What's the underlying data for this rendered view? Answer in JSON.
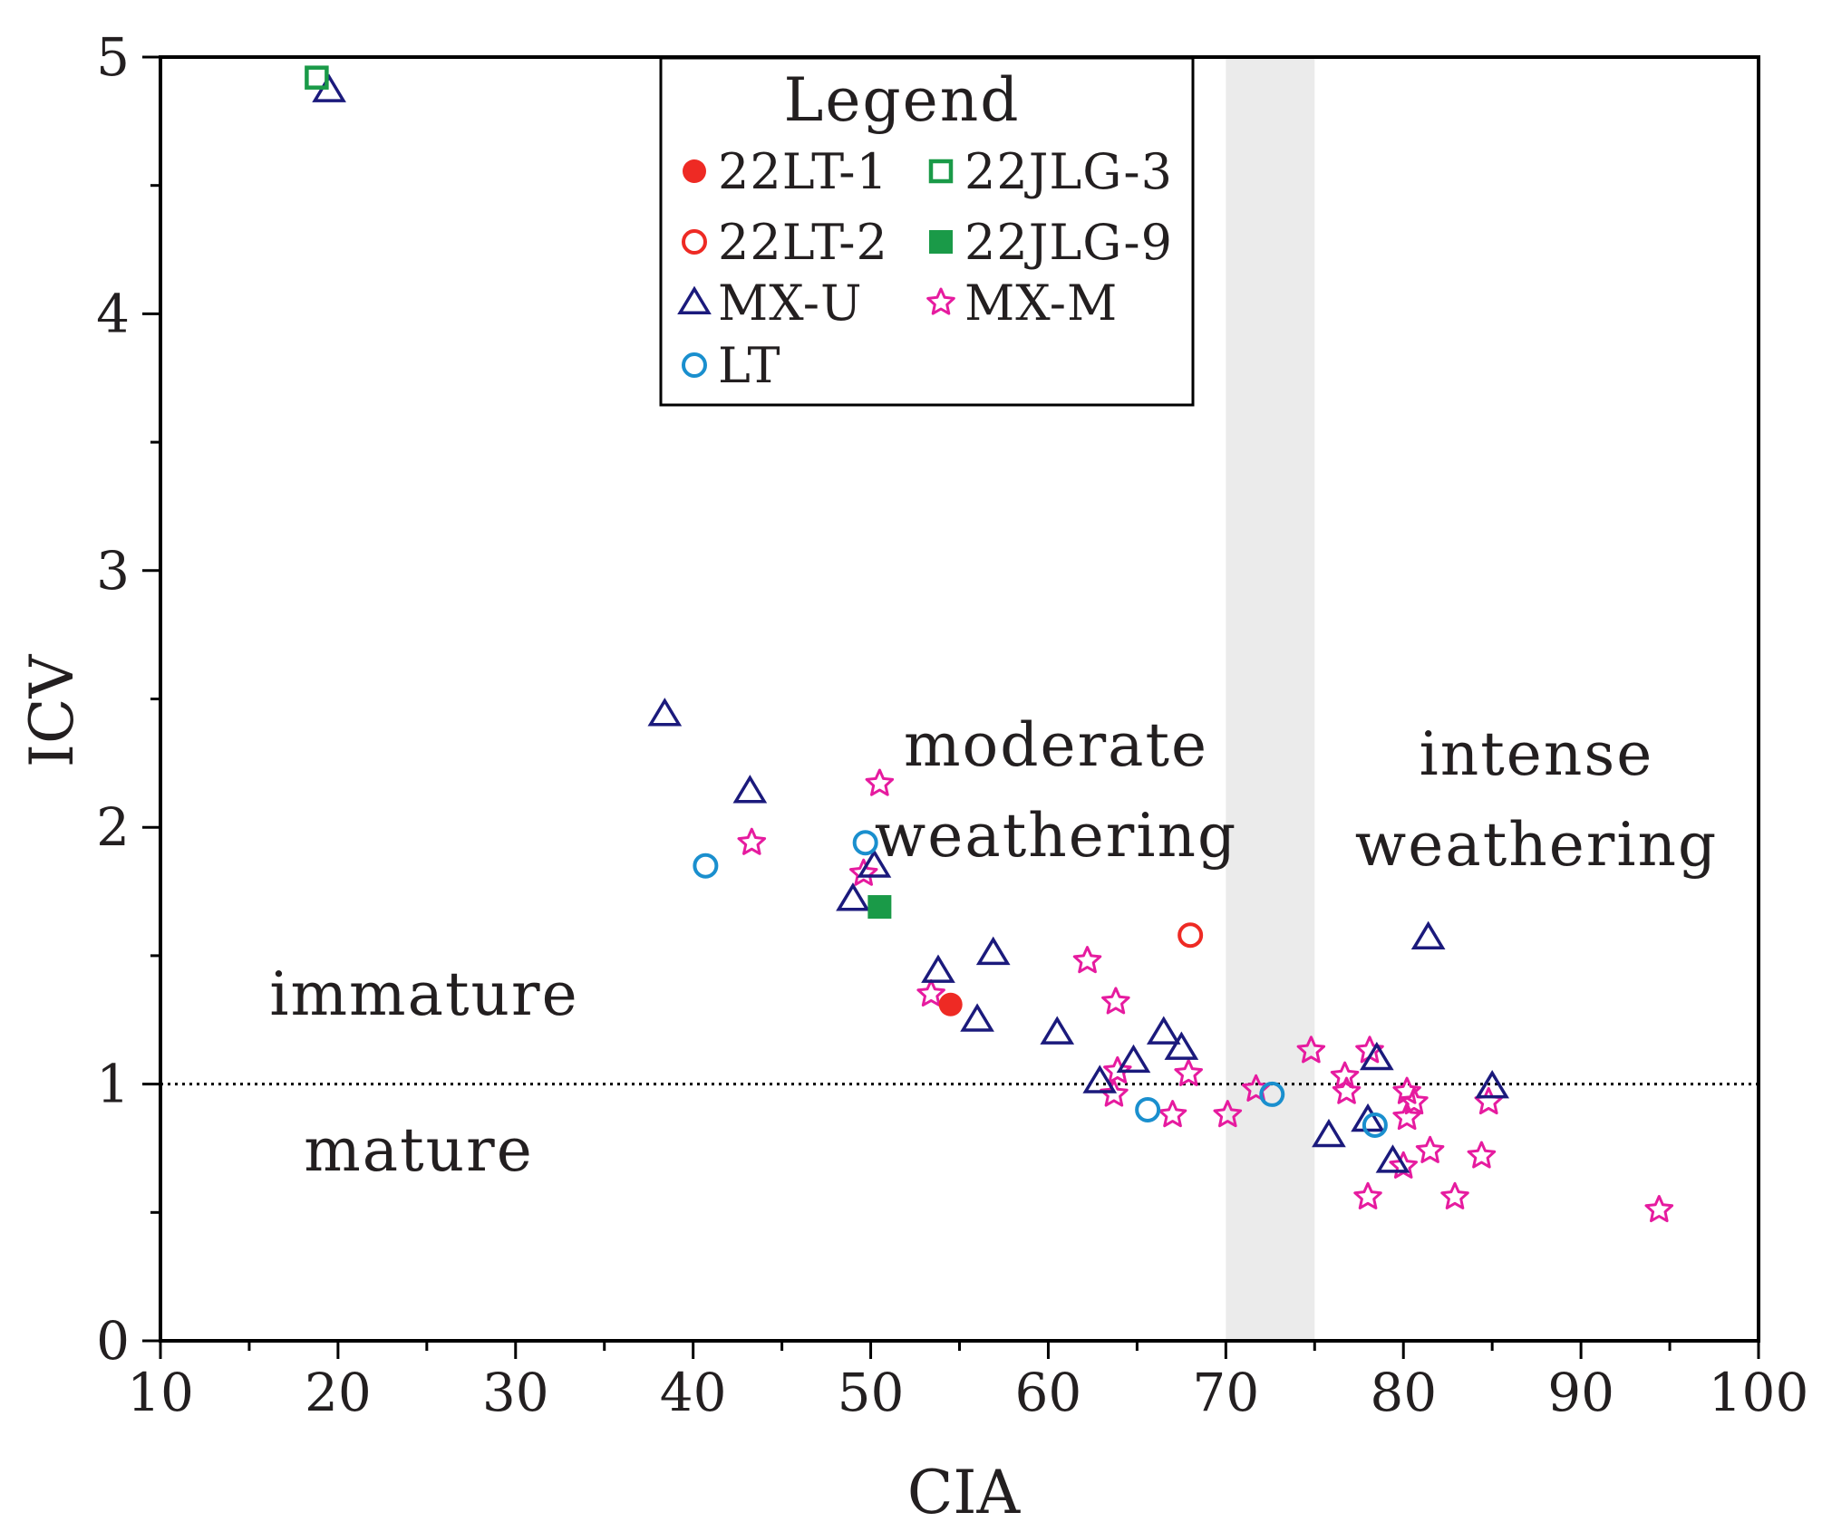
{
  "chart_data": {
    "type": "scatter",
    "title": "",
    "xlabel": "CIA",
    "ylabel": "ICV",
    "xlim": [
      10,
      100
    ],
    "ylim": [
      0,
      5
    ],
    "xticks": [
      "10",
      "20",
      "30",
      "40",
      "50",
      "60",
      "70",
      "80",
      "90",
      "100"
    ],
    "yticks": [
      "0",
      "1",
      "2",
      "3",
      "4",
      "5"
    ],
    "grid": false,
    "reference_line": {
      "y": 1,
      "style": "dotted"
    },
    "shaded_band": {
      "x": [
        70,
        75
      ],
      "color": "#ebebeb"
    },
    "region_labels": {
      "moderate": [
        "moderate",
        "weathering"
      ],
      "intense": [
        "intense",
        "weathering"
      ],
      "immature": "immature",
      "mature": "mature"
    },
    "legend": {
      "title": "Legend",
      "placement": "top-center"
    },
    "series": [
      {
        "name": "22LT-1",
        "marker": "circle-filled",
        "color": "#ee2a24",
        "points": [
          [
            54.5,
            1.31
          ]
        ]
      },
      {
        "name": "22JLG-3",
        "marker": "square-open",
        "color": "#1a9a48",
        "points": [
          [
            18.8,
            4.92
          ]
        ]
      },
      {
        "name": "22LT-2",
        "marker": "circle-open",
        "color": "#ee2a24",
        "points": [
          [
            68.0,
            1.58
          ]
        ]
      },
      {
        "name": "22JLG-9",
        "marker": "square-filled",
        "color": "#1a9a48",
        "points": [
          [
            50.5,
            1.69
          ]
        ]
      },
      {
        "name": "MX-U",
        "marker": "triangle-open",
        "color": "#1b1a7c",
        "points": [
          [
            19.5,
            4.87
          ],
          [
            38.4,
            2.44
          ],
          [
            43.2,
            2.14
          ],
          [
            50.2,
            1.85
          ],
          [
            49.0,
            1.72
          ],
          [
            56.9,
            1.51
          ],
          [
            53.8,
            1.44
          ],
          [
            56.0,
            1.25
          ],
          [
            60.5,
            1.2
          ],
          [
            66.5,
            1.2
          ],
          [
            67.5,
            1.14
          ],
          [
            64.8,
            1.09
          ],
          [
            62.9,
            1.01
          ],
          [
            81.4,
            1.57
          ],
          [
            78.5,
            1.1
          ],
          [
            85.0,
            0.99
          ],
          [
            78.0,
            0.86
          ],
          [
            75.8,
            0.8
          ],
          [
            79.4,
            0.7
          ]
        ]
      },
      {
        "name": "MX-M",
        "marker": "star-open",
        "color": "#e61b9f",
        "points": [
          [
            50.5,
            2.17
          ],
          [
            43.3,
            1.94
          ],
          [
            49.6,
            1.82
          ],
          [
            53.4,
            1.35
          ],
          [
            62.2,
            1.48
          ],
          [
            63.8,
            1.32
          ],
          [
            63.9,
            1.05
          ],
          [
            63.7,
            0.96
          ],
          [
            67.9,
            1.04
          ],
          [
            67.0,
            0.88
          ],
          [
            70.1,
            0.88
          ],
          [
            71.7,
            0.98
          ],
          [
            74.8,
            1.13
          ],
          [
            76.7,
            1.03
          ],
          [
            76.8,
            0.97
          ],
          [
            78.1,
            1.13
          ],
          [
            80.2,
            0.97
          ],
          [
            80.6,
            0.93
          ],
          [
            80.2,
            0.87
          ],
          [
            84.8,
            0.93
          ],
          [
            81.5,
            0.74
          ],
          [
            84.4,
            0.72
          ],
          [
            80.0,
            0.68
          ],
          [
            78.0,
            0.56
          ],
          [
            82.9,
            0.56
          ],
          [
            94.4,
            0.51
          ]
        ]
      },
      {
        "name": "LT",
        "marker": "circle-open",
        "color": "#1a8fce",
        "points": [
          [
            40.7,
            1.85
          ],
          [
            49.7,
            1.94
          ],
          [
            65.6,
            0.9
          ],
          [
            72.6,
            0.96
          ],
          [
            78.4,
            0.84
          ]
        ]
      }
    ]
  }
}
